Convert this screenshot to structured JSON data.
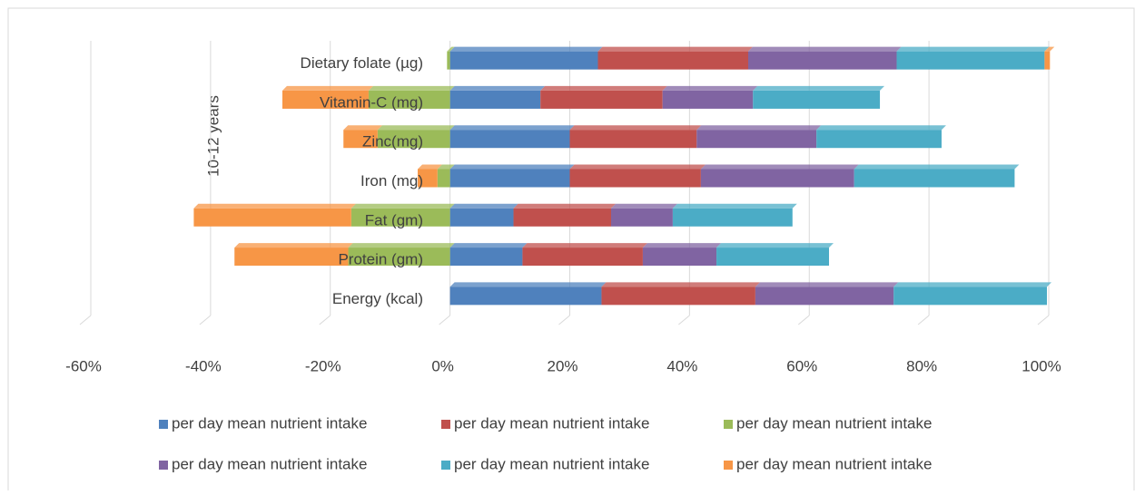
{
  "chart_data": {
    "type": "stacked-bar-horizontal",
    "group_label": "10-12 years",
    "categories": [
      "Energy (kcal)",
      "Protein (gm)",
      "Fat (gm)",
      "Iron (mg)",
      "Zinc(mg)",
      "Vitamin-C (mg)",
      "Dietary folate (µg)"
    ],
    "series": [
      {
        "name": "per day mean nutrient intake",
        "color": "#4f81bd",
        "values": [
          25.3,
          12.1,
          10.6,
          20,
          20,
          15.1,
          24.7
        ]
      },
      {
        "name": "per day mean nutrient intake",
        "color": "#c0504d",
        "values": [
          25.7,
          20.1,
          16.3,
          21.9,
          21.2,
          20.4,
          25.1
        ]
      },
      {
        "name": "per day mean nutrient intake",
        "color": "#9bbb59",
        "values": [
          0,
          -17,
          -16.5,
          -2.1,
          -12.1,
          -13.6,
          -0.5
        ]
      },
      {
        "name": "per day mean nutrient intake",
        "color": "#8064a2",
        "values": [
          23.1,
          12.3,
          10.3,
          25.6,
          20,
          15.1,
          24.8
        ]
      },
      {
        "name": "per day mean nutrient intake",
        "color": "#4bacc6",
        "values": [
          25.6,
          18.8,
          20,
          26.8,
          20.9,
          21.2,
          24.7
        ]
      },
      {
        "name": "per day mean nutrient intake",
        "color": "#f79646",
        "values": [
          0,
          -19,
          -26.3,
          -3.3,
          -5.7,
          -14.4,
          0.9
        ]
      }
    ],
    "xlim": [
      -60,
      100
    ],
    "xticks": [
      {
        "value": -60,
        "label": "-60%"
      },
      {
        "value": -40,
        "label": "-40%"
      },
      {
        "value": -20,
        "label": "-20%"
      },
      {
        "value": 0,
        "label": "0%"
      },
      {
        "value": 20,
        "label": "20%"
      },
      {
        "value": 40,
        "label": "40%"
      },
      {
        "value": 60,
        "label": "60%"
      },
      {
        "value": 80,
        "label": "80%"
      },
      {
        "value": 100,
        "label": "100%"
      }
    ],
    "grid": true,
    "legend": "bottom"
  }
}
